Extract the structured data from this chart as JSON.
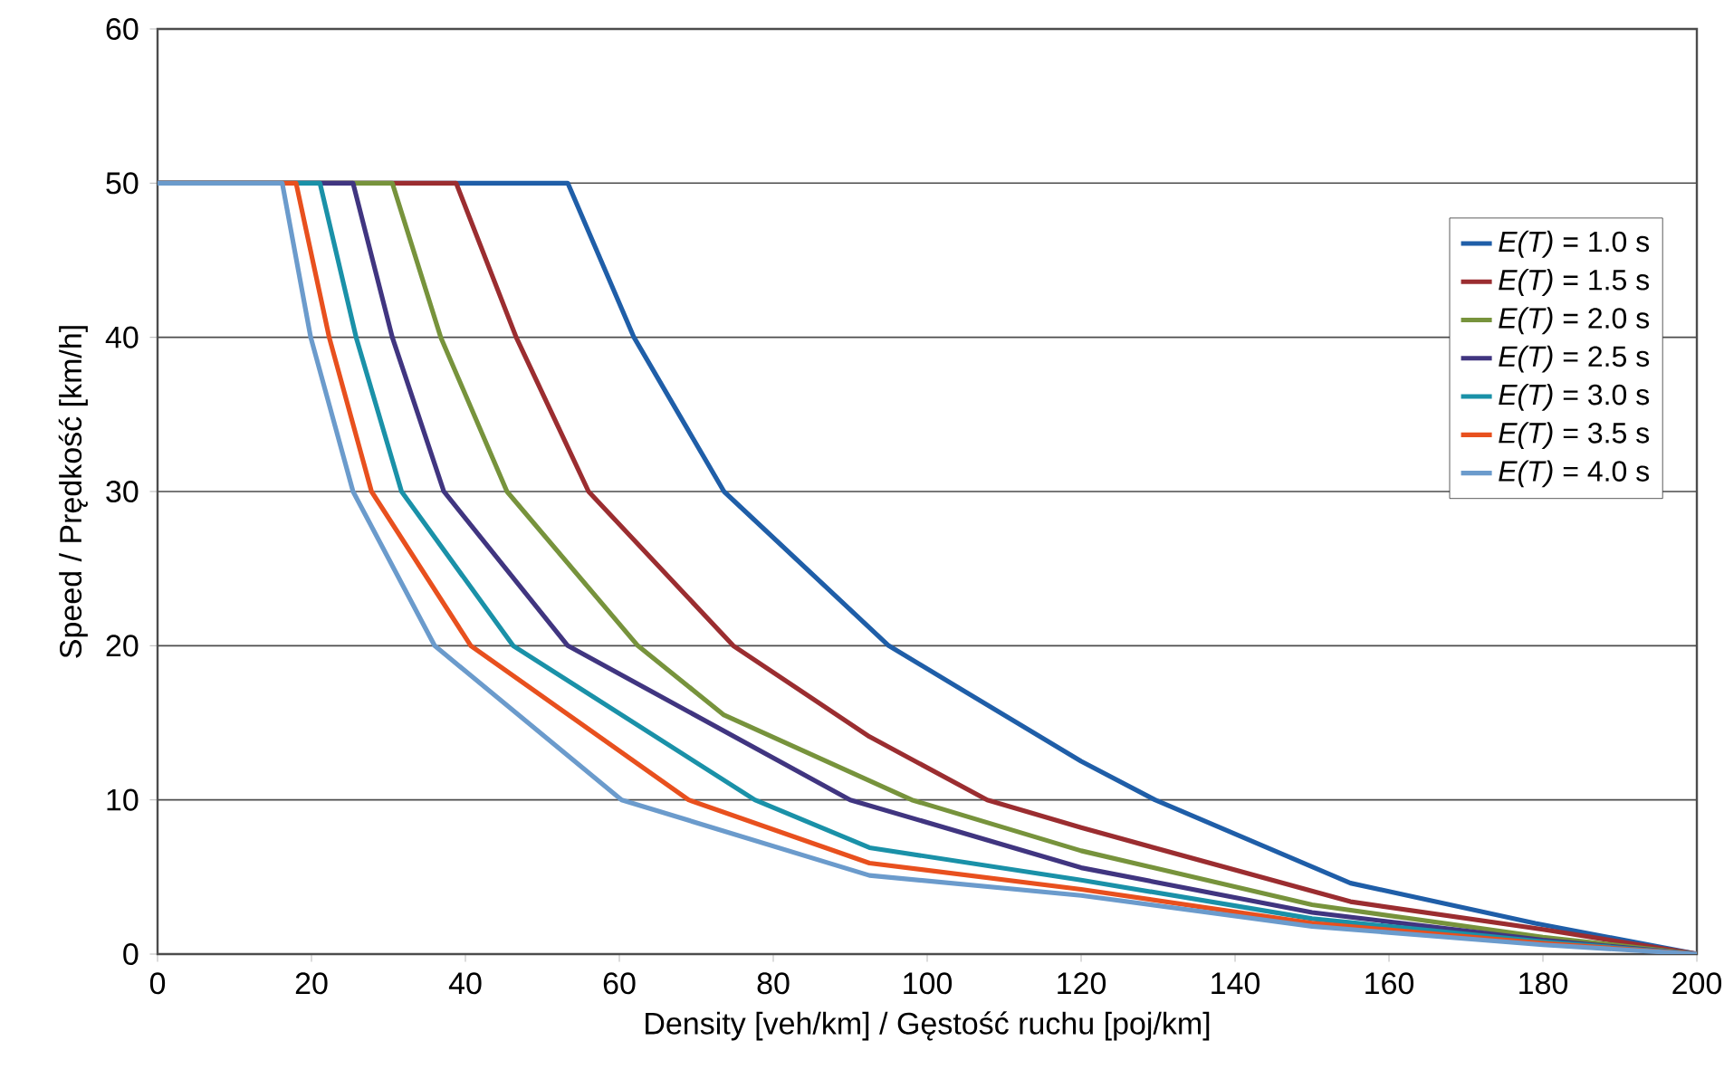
{
  "chart_data": {
    "type": "line",
    "xlabel": "Density [veh/km] / Gęstość ruchu [poj/km]",
    "ylabel": "Speed / Prędkość [km/h]",
    "xlim": [
      0,
      200
    ],
    "xticks": [
      0,
      20,
      40,
      60,
      80,
      100,
      120,
      140,
      160,
      180,
      200
    ],
    "ylim": [
      0,
      60
    ],
    "yticks": [
      0,
      10,
      20,
      30,
      40,
      50,
      60
    ],
    "grid": "y",
    "legend": "right",
    "marker": "none",
    "line_style": "solid",
    "series": [
      {
        "name": "*E(T)* = 1.0 s",
        "color": "#1f5ea8",
        "x": [
          0,
          53.3,
          61.9,
          73.6,
          95,
          120,
          129.6,
          155,
          179,
          200
        ],
        "values": [
          50,
          50,
          40,
          30,
          20,
          12.5,
          10,
          4.6,
          2.0,
          0
        ]
      },
      {
        "name": "*E(T)* = 1.5 s",
        "color": "#9b2d30",
        "x": [
          0,
          38.8,
          46.6,
          56,
          74.8,
          92.5,
          107.8,
          120,
          155,
          180,
          200
        ],
        "values": [
          50,
          50,
          40,
          30,
          20,
          14.1,
          10,
          8.2,
          3.4,
          1.6,
          0
        ]
      },
      {
        "name": "*E(T)* = 2.0 s",
        "color": "#77933c",
        "x": [
          0,
          30.5,
          36.8,
          45.4,
          62.4,
          73.6,
          98,
          120,
          150,
          180,
          200
        ],
        "values": [
          50,
          50,
          40,
          30,
          20,
          15.5,
          10,
          6.7,
          3.2,
          1.1,
          0
        ]
      },
      {
        "name": "*E(T)* = 2.5 s",
        "color": "#403580",
        "x": [
          0,
          25.4,
          30.5,
          37.2,
          53.3,
          90,
          120,
          150,
          180,
          200
        ],
        "values": [
          50,
          50,
          40,
          30,
          20,
          10,
          5.6,
          2.7,
          0.9,
          0
        ]
      },
      {
        "name": "*E(T)* = 3.0 s",
        "color": "#1a91a8",
        "x": [
          0,
          21.1,
          25.8,
          31.7,
          46.2,
          77.6,
          92.5,
          120,
          150,
          180,
          200
        ],
        "values": [
          50,
          50,
          40,
          30,
          20,
          10,
          6.9,
          4.8,
          2.3,
          0.8,
          0
        ]
      },
      {
        "name": "*E(T)* = 3.5 s",
        "color": "#e8501e",
        "x": [
          0,
          18,
          22.3,
          27.8,
          40.7,
          69,
          92.5,
          120,
          150,
          180,
          200
        ],
        "values": [
          50,
          50,
          40,
          30,
          20,
          10,
          5.9,
          4.2,
          2.0,
          0.7,
          0
        ]
      },
      {
        "name": "*E(T)* = 4.0 s",
        "color": "#6b9bcc",
        "x": [
          0,
          16.2,
          19.9,
          25.4,
          36,
          60.3,
          92.5,
          120,
          150,
          180,
          200
        ],
        "values": [
          50,
          50,
          40,
          30,
          20,
          10,
          5.1,
          3.8,
          1.8,
          0.6,
          0
        ]
      }
    ]
  }
}
